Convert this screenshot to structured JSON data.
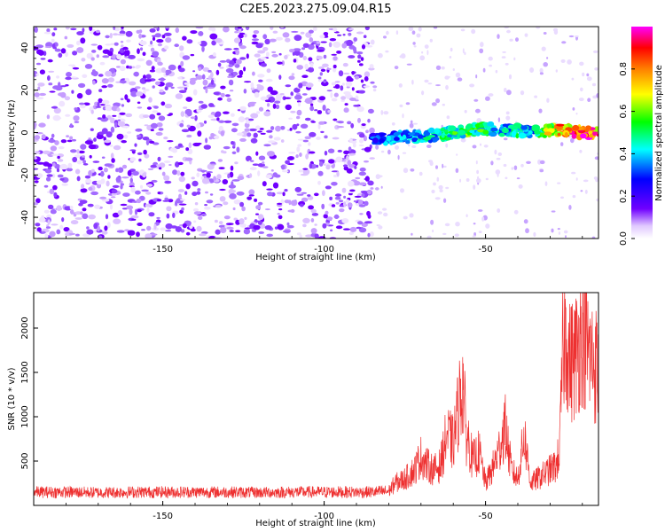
{
  "title": "C2E5.2023.275.09.04.R15",
  "chart_data": [
    {
      "type": "heatmap",
      "xlabel": "Height of straight line (km)",
      "ylabel": "Frequency (Hz)",
      "xlim": [
        -190,
        -15
      ],
      "ylim": [
        -50,
        50
      ],
      "xticks": [
        -150,
        -100,
        -50
      ],
      "yticks": [
        -40,
        -20,
        0,
        20,
        40
      ],
      "colormap": [
        "#ffffff",
        "#7000ff",
        "#0000ff",
        "#00ffff",
        "#00ff00",
        "#ffff00",
        "#ff8000",
        "#ff0000",
        "#ff00ff"
      ],
      "colorbar": {
        "label": "Normalized spectral amplitude",
        "range": [
          0,
          1
        ],
        "ticks": [
          "0.0",
          "0.2",
          "0.4",
          "0.6",
          "0.8"
        ]
      },
      "description_series": [
        {
          "name": "noise-floor",
          "x_range": [
            -190,
            -85
          ],
          "amplitude": 0.05
        },
        {
          "name": "signal-ridge",
          "x": [
            -85,
            -80,
            -75,
            -70,
            -65,
            -60,
            -55,
            -50,
            -45,
            -40,
            -35,
            -30,
            -25,
            -20,
            -15
          ],
          "frequency_hz": [
            -3,
            -3,
            -2,
            -2,
            -1,
            0,
            1,
            2,
            1,
            1,
            0,
            1,
            1,
            0,
            0
          ],
          "amplitude": [
            0.3,
            0.35,
            0.35,
            0.4,
            0.45,
            0.5,
            0.55,
            0.5,
            0.4,
            0.45,
            0.4,
            0.7,
            0.85,
            0.95,
            0.9
          ]
        }
      ],
      "grid": false
    },
    {
      "type": "line",
      "xlabel": "Height of straight line (km)",
      "ylabel": "SNR (10 * v/v)",
      "xlim": [
        -190,
        -15
      ],
      "ylim": [
        0,
        2400
      ],
      "xticks": [
        -150,
        -100,
        -50
      ],
      "yticks": [
        500,
        1000,
        1500,
        2000
      ],
      "color": "#ee3030",
      "series": [
        {
          "x": [
            -190,
            -180,
            -170,
            -160,
            -150,
            -140,
            -130,
            -120,
            -110,
            -100,
            -90,
            -85,
            -80,
            -78,
            -75,
            -72,
            -70,
            -68,
            -66,
            -64,
            -62,
            -60,
            -58,
            -57,
            -56,
            -55,
            -54,
            -52,
            -50,
            -48,
            -46,
            -44,
            -42,
            -40,
            -38,
            -36,
            -34,
            -32,
            -30,
            -28,
            -27,
            -26,
            -25,
            -24,
            -22,
            -20,
            -18,
            -16,
            -15
          ],
          "values": [
            150,
            150,
            145,
            150,
            150,
            150,
            150,
            145,
            150,
            150,
            150,
            150,
            160,
            250,
            300,
            400,
            550,
            450,
            400,
            450,
            800,
            700,
            1200,
            1400,
            800,
            700,
            500,
            600,
            250,
            400,
            600,
            900,
            400,
            300,
            800,
            250,
            300,
            350,
            400,
            450,
            650,
            1800,
            2000,
            1600,
            1700,
            2000,
            1700,
            1600,
            1500
          ]
        }
      ],
      "grid": false
    }
  ]
}
